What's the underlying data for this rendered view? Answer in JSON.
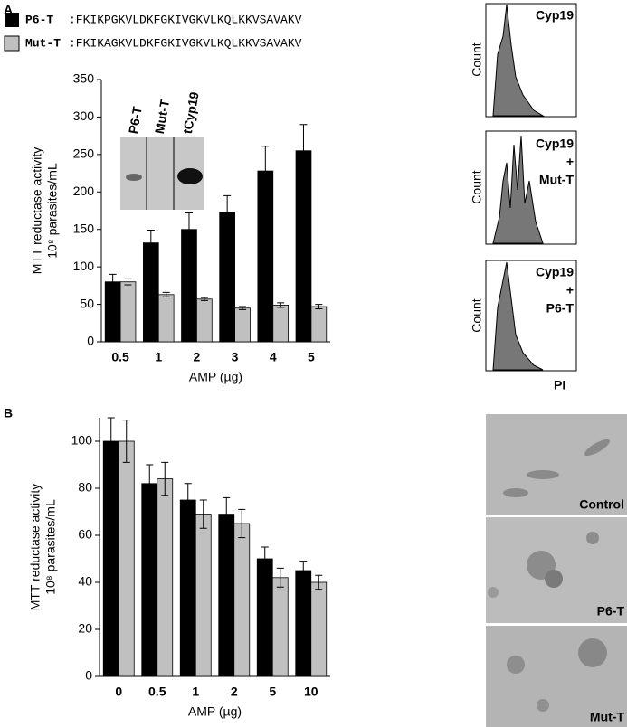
{
  "panel_labels": [
    "A",
    "B"
  ],
  "sequences": [
    ":FKIKPGKVLDKFGKIVGKVLKQLKKVSAVAKV",
    ":FKIKAGKVLDKFGKIVGKVLKQLKKVSAVAKV"
  ],
  "blot": {
    "lanes": [
      "P6-T",
      "Mut-T",
      "tCyp19"
    ]
  },
  "histograms": {
    "panels": [
      {
        "label_lines": [
          "Cyp19"
        ]
      },
      {
        "label_lines": [
          "Cyp19",
          "+",
          "Mut-T"
        ]
      },
      {
        "label_lines": [
          "Cyp19",
          "+",
          "P6-T"
        ]
      }
    ],
    "y_label": "Count",
    "x_label": "PI"
  },
  "micrographs": [
    "Control",
    "P6-T",
    "Mut-T"
  ],
  "chart_data": [
    {
      "type": "bar",
      "y_label_lines": [
        "MTT reductase activity",
        "10⁸ parasites/mL"
      ],
      "x_label": "AMP (µg)",
      "categories": [
        "0.5",
        "1",
        "2",
        "3",
        "4",
        "5"
      ],
      "series": [
        {
          "name": "P6-T",
          "color": "#000000",
          "values": [
            80,
            132,
            150,
            173,
            228,
            255
          ],
          "errors": [
            10,
            17,
            22,
            22,
            33,
            35
          ]
        },
        {
          "name": "Mut-T",
          "color": "#c0c0c0",
          "values": [
            80,
            63,
            57,
            45,
            49,
            47
          ],
          "errors": [
            4,
            3,
            2,
            2,
            3,
            3
          ]
        }
      ],
      "ylim": [
        0,
        350
      ],
      "yticks": [
        0,
        50,
        100,
        150,
        200,
        250,
        300,
        350
      ]
    },
    {
      "type": "bar",
      "y_label_lines": [
        "MTT reductase activity",
        "10⁸ parasites/mL"
      ],
      "x_label": "AMP (µg)",
      "categories": [
        "0",
        "0.5",
        "1",
        "2",
        "5",
        "10"
      ],
      "series": [
        {
          "color": "#000000",
          "values": [
            100,
            82,
            75,
            69,
            50,
            45
          ],
          "errors": [
            10,
            8,
            7,
            7,
            5,
            4
          ]
        },
        {
          "color": "#c0c0c0",
          "values": [
            100,
            84,
            69,
            65,
            42,
            40
          ],
          "errors": [
            9,
            7,
            6,
            6,
            4,
            3
          ]
        }
      ],
      "ylim": [
        0,
        110
      ],
      "yticks": [
        0,
        20,
        40,
        60,
        80,
        100
      ]
    }
  ]
}
